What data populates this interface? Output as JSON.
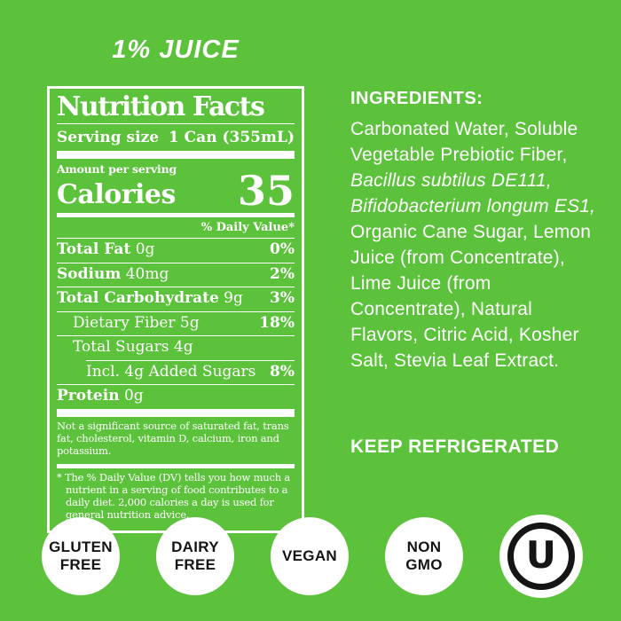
{
  "colors": {
    "background": "#5cc23c",
    "panel_text": "#ffffff",
    "badge_background": "#ffffff",
    "badge_text": "#151515"
  },
  "header": {
    "juice_label": "1% JUICE"
  },
  "nutrition": {
    "title": "Nutrition Facts",
    "serving_size_label": "Serving size",
    "serving_size_value": "1 Can (355mL)",
    "amount_label": "Amount per serving",
    "calories_label": "Calories",
    "calories_value": "35",
    "daily_value_label": "% Daily Value*",
    "rows": [
      {
        "bold": "Total Fat",
        "text": " 0g",
        "dv": "0%",
        "indent": 0,
        "rule_indent": 0
      },
      {
        "bold": "Sodium",
        "text": " 40mg",
        "dv": "2%",
        "indent": 0,
        "rule_indent": 0
      },
      {
        "bold": "Total Carbohydrate",
        "text": " 9g",
        "dv": "3%",
        "indent": 0,
        "rule_indent": 0
      },
      {
        "bold": "",
        "text": "Dietary Fiber 5g",
        "dv": "18%",
        "indent": 1,
        "rule_indent": 0
      },
      {
        "bold": "",
        "text": "Total Sugars 4g",
        "dv": "",
        "indent": 1,
        "rule_indent": 0
      },
      {
        "bold": "",
        "text": "Incl. 4g Added Sugars",
        "dv": "8%",
        "indent": 2,
        "rule_indent": 33
      },
      {
        "bold": "Protein",
        "text": " 0g",
        "dv": "",
        "indent": 0,
        "rule_indent": 0
      }
    ],
    "not_significant_note": "Not a significant source of saturated fat, trans fat, cholesterol, vitamin D, calcium, iron and potassium.",
    "footnote": "* The % Daily Value (DV) tells you how much a nutrient in a serving of food contributes to a daily diet. 2,000 calories a day is used for general nutrition advice."
  },
  "ingredients": {
    "heading": "INGREDIENTS:",
    "segments": [
      {
        "text": "Carbonated Water, Soluble Vegetable Prebiotic Fiber, ",
        "italic": false
      },
      {
        "text": "Bacillus subtilus DE111, Bifidobacterium longum ES1,",
        "italic": true
      },
      {
        "text": " Organic Cane Sugar, Lemon Juice (from Concentrate), Lime Juice (from Concentrate), Natural Flavors, Citric Acid, Kosher Salt, Stevia Leaf Extract.",
        "italic": false
      }
    ]
  },
  "storage": {
    "keep_refrigerated": "KEEP REFRIGERATED"
  },
  "badges": [
    {
      "type": "text",
      "name": "badge-gluten-free",
      "lines": [
        "GLUTEN",
        "FREE"
      ]
    },
    {
      "type": "text",
      "name": "badge-dairy-free",
      "lines": [
        "DAIRY",
        "FREE"
      ]
    },
    {
      "type": "text",
      "name": "badge-vegan",
      "lines": [
        "VEGAN"
      ]
    },
    {
      "type": "text",
      "name": "badge-non-gmo",
      "lines": [
        "NON",
        "GMO"
      ]
    },
    {
      "type": "kosher",
      "name": "badge-kosher-ou",
      "symbol": "U"
    }
  ]
}
